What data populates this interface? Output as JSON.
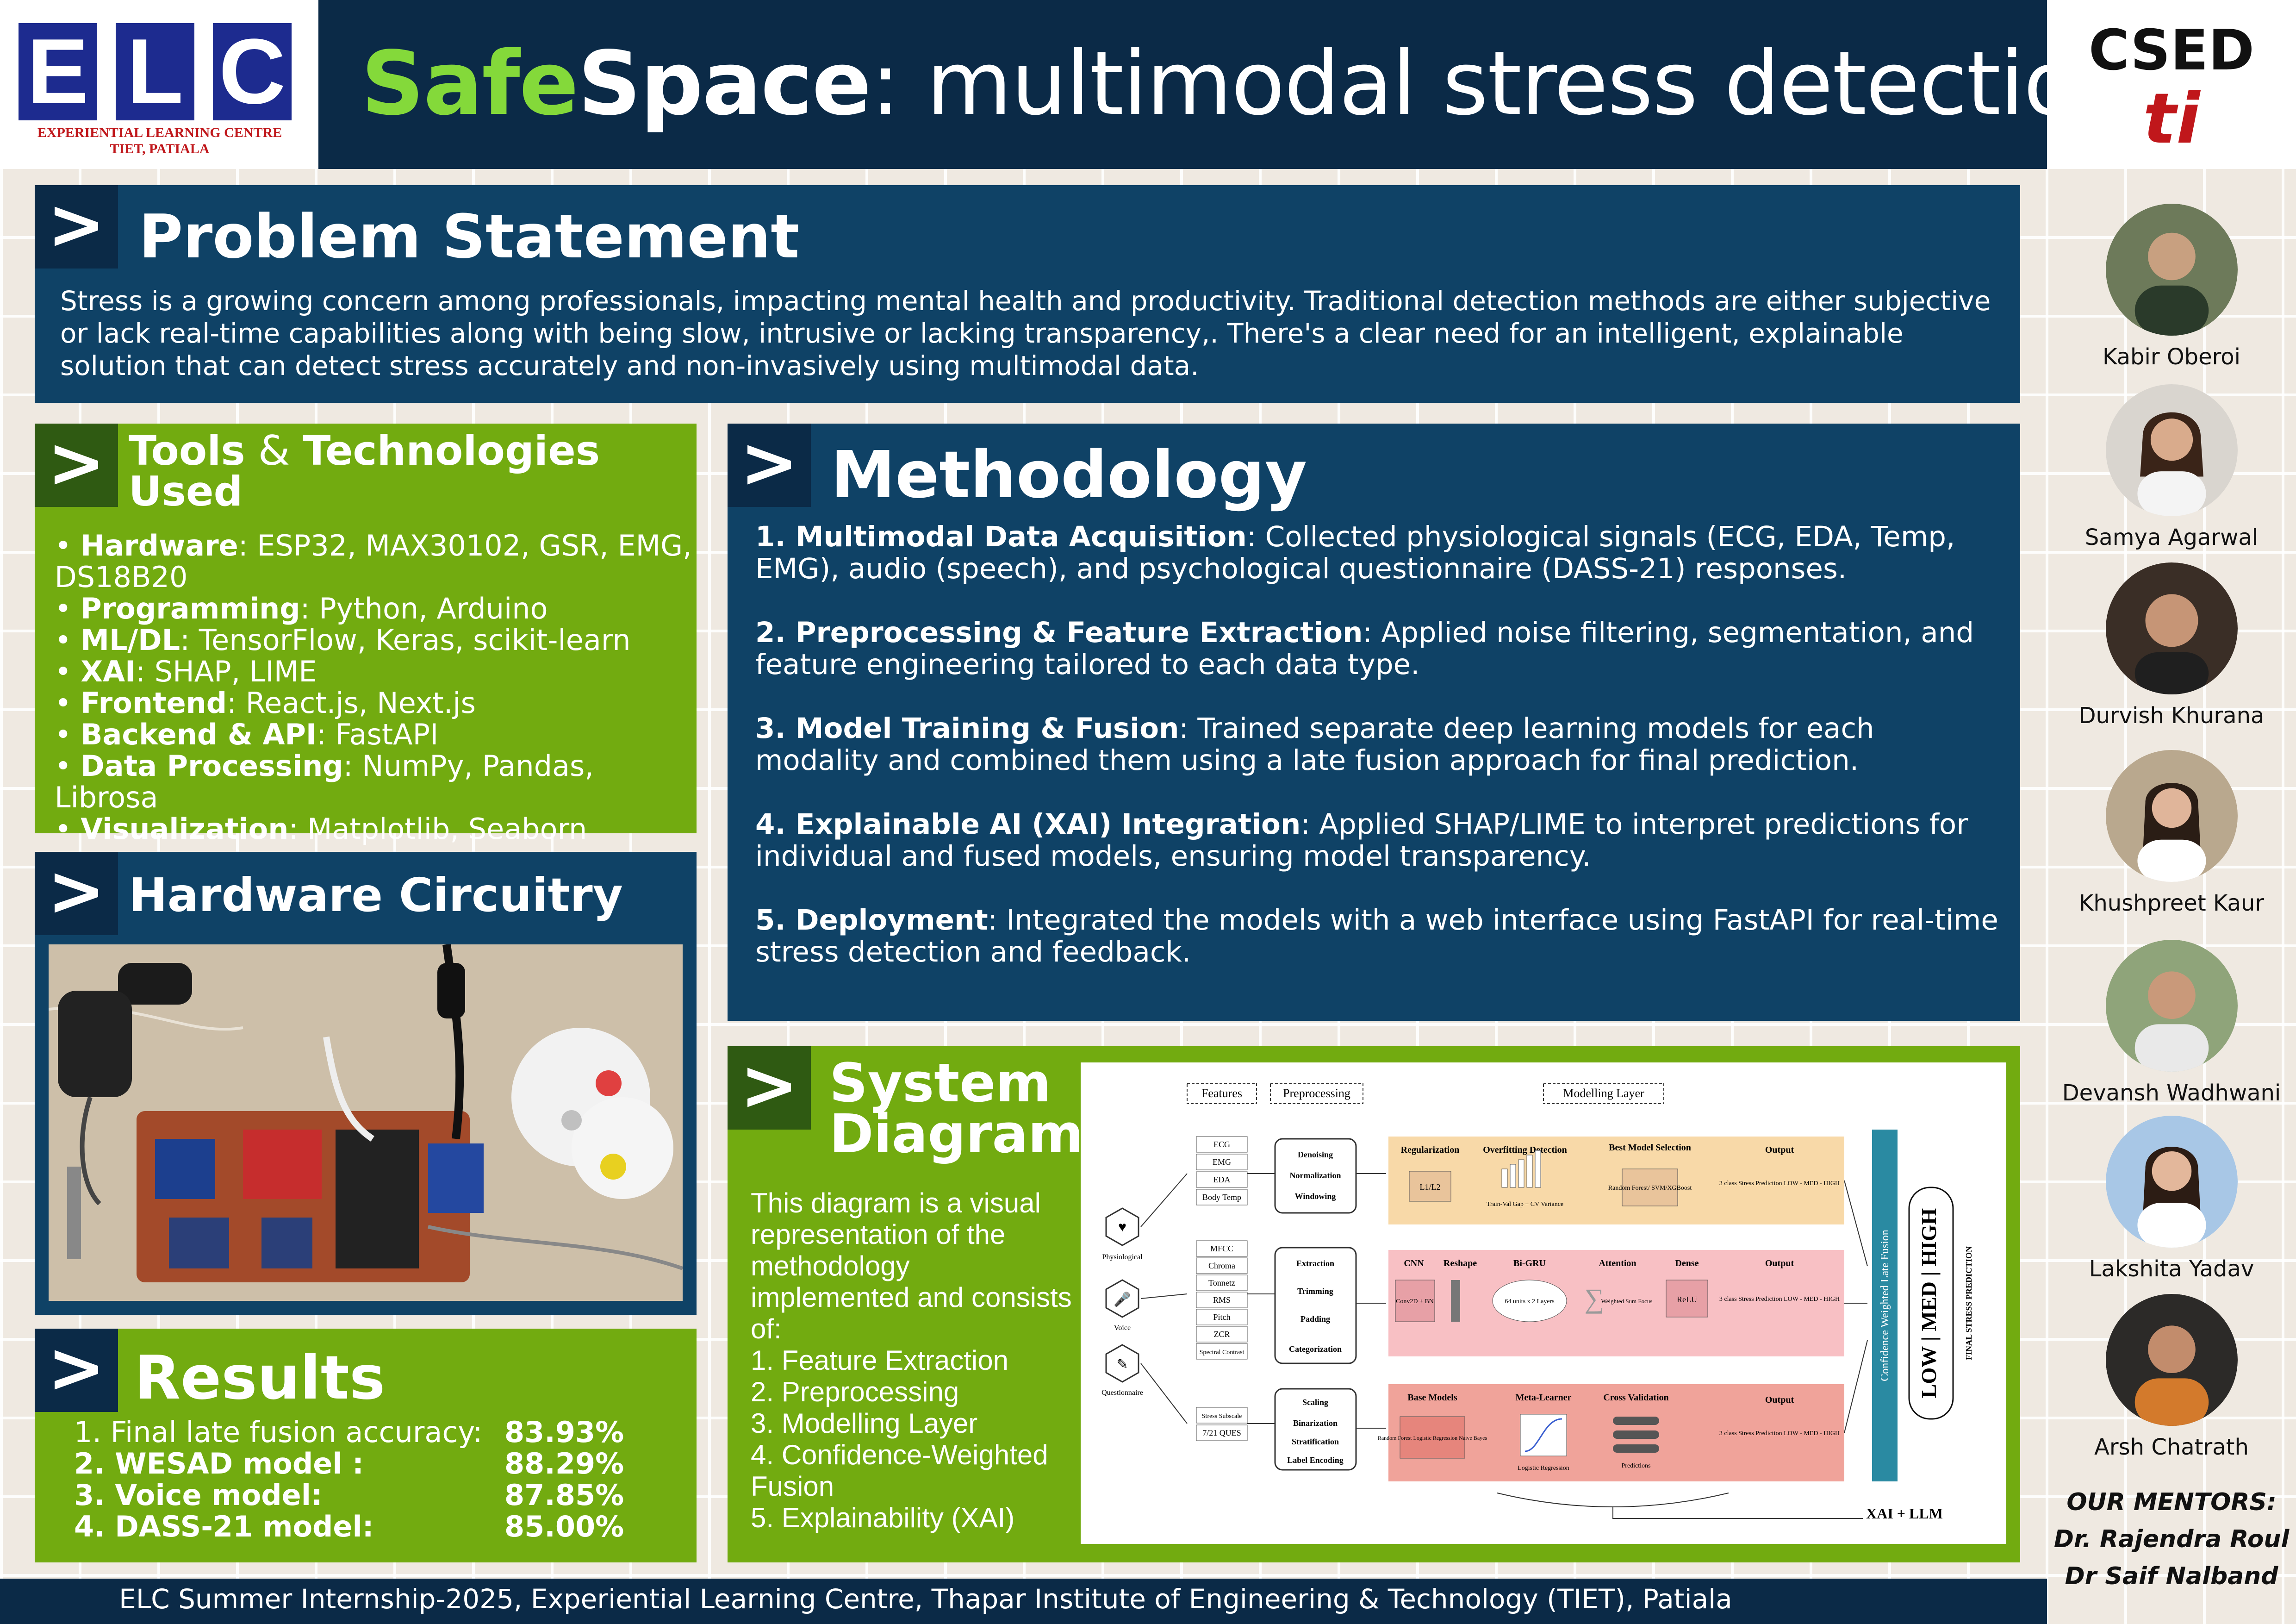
{
  "header": {
    "logo_letters": [
      "E",
      "L",
      "C"
    ],
    "logo_line1": "EXPERIENTIAL LEARNING CENTRE",
    "logo_line2": "TIET, PATIALA",
    "title_accent": "Safe",
    "title_bold": "Space",
    "title_rest": ": multimodal stress detection",
    "dept": "CSED",
    "dept_logo": "ti"
  },
  "problem": {
    "title": "Problem Statement",
    "body": "Stress is a growing concern among professionals, impacting mental health and productivity. Traditional detection methods are either subjective or lack real-time capabilities along with being  slow, intrusive or lacking transparency,. There's a clear need for an intelligent, explainable solution that can detect stress accurately and non-invasively using multimodal data."
  },
  "tools": {
    "title_a": "Tools",
    "title_amp": " & ",
    "title_b": "Technologies Used",
    "items": [
      {
        "label": "Hardware",
        "value": ": ESP32, MAX30102, GSR, EMG, DS18B20"
      },
      {
        "label": "Programming",
        "value": ": Python, Arduino"
      },
      {
        "label": "ML/DL",
        "value": ": TensorFlow, Keras, scikit-learn"
      },
      {
        "label": "XAI",
        "value": ": SHAP, LIME"
      },
      {
        "label": "Frontend",
        "value": ": React.js, Next.js"
      },
      {
        "label": "Backend & API",
        "value": ": FastAPI"
      },
      {
        "label": "Data Processing",
        "value": ": NumPy, Pandas, Librosa"
      },
      {
        "label": "Visualization",
        "value": ": Matplotlib, Seaborn"
      }
    ]
  },
  "hardware": {
    "title": "Hardware Circuitry"
  },
  "results": {
    "title": "Results",
    "items": [
      {
        "label": "1. Final late fusion accuracy:",
        "value": "83.93%"
      },
      {
        "label": "2. WESAD model :",
        "value": "88.29%"
      },
      {
        "label": "3. Voice model:",
        "value": "87.85%"
      },
      {
        "label": "4. DASS-21 model:",
        "value": "85.00%"
      }
    ]
  },
  "methodology": {
    "title": "Methodology",
    "items": [
      {
        "head": "1. Multimodal Data Acquisition",
        "text": ": Collected physiological signals (ECG, EDA, Temp, EMG), audio (speech), and psychological questionnaire (DASS-21) responses."
      },
      {
        "head": "2. Preprocessing & Feature Extraction",
        "text": ":  Applied noise filtering, segmentation, and feature engineering tailored to each data type."
      },
      {
        "head": "3. Model Training & Fusion",
        "text": ":  Trained separate deep learning models for each modality and combined them using a late fusion approach for final prediction."
      },
      {
        "head": "4. Explainable AI (XAI) Integration",
        "text": ": Applied SHAP/LIME to interpret predictions for individual and fused models, ensuring model transparency."
      },
      {
        "head": "5. Deployment",
        "text": ":  Integrated the models with a web interface using FastAPI for real-time stress detection and feedback."
      }
    ]
  },
  "system": {
    "title": "System Diagram",
    "desc": "This diagram is a visual representation of the methodology implemented and consists of:",
    "items": [
      "1. Feature Extraction",
      "2. Preprocessing",
      "3. Modelling Layer",
      "4. Confidence-Weighted Fusion",
      "5. Explainability (XAI)"
    ]
  },
  "diagram": {
    "col_features": "Features",
    "col_preprocessing": "Preprocessing",
    "col_modelling": "Modelling Layer",
    "phys_features": [
      "ECG",
      "EMG",
      "EDA",
      "Body Temp"
    ],
    "voice_features": [
      "MFCC",
      "Chroma",
      "Tonnetz",
      "RMS",
      "Pitch",
      "ZCR",
      "Spectral Contrast"
    ],
    "quest_features": [
      "Stress Subscale",
      "7/21 QUES"
    ],
    "inputs": [
      "Physiological",
      "Voice",
      "Questionnaire"
    ],
    "pre1": [
      "Denoising",
      "Normalization",
      "Windowing"
    ],
    "pre2": [
      "Extraction",
      "Trimming",
      "Padding",
      "Categorization"
    ],
    "pre3": [
      "Scaling",
      "Binarization",
      "Stratification",
      "Label Encoding"
    ],
    "row1": {
      "a": "Regularization",
      "a_box": "L1/L2",
      "b": "Overfitting Detection",
      "b_sub": "Train-Val Gap + CV Variance",
      "c": "Best Model Selection",
      "c_box": "Random Forest/ SVM/XGBoost",
      "d": "Output",
      "d_text": "3 class Stress Prediction LOW - MED - HIGH"
    },
    "row2": {
      "a": "CNN",
      "a_box": "Conv2D + BN",
      "r": "Reshape",
      "b": "Bi-GRU",
      "b_box": "64 units x 2 Layers",
      "c": "Attention",
      "c_sub": "Weighted Sum Focus",
      "e": "Dense",
      "e_box": "ReLU",
      "d": "Output",
      "d_text": "3 class Stress Prediction LOW - MED - HIGH"
    },
    "row3": {
      "a": "Base Models",
      "a_box": "Random Forest Logistic Regression Naive Bayes",
      "b": "Meta-Learner",
      "b_sub": "Logistic Regression",
      "c": "Cross Validation",
      "c_sub": "Predictions",
      "d": "Output",
      "d_text": "3 class Stress Prediction LOW - MED - HIGH"
    },
    "fusion": "Confidence Weighted Late Fusion",
    "result": "LOW | MED | HIGH",
    "final": "FINAL STRESS PREDICTION",
    "xai": "XAI + LLM"
  },
  "team": {
    "members": [
      "Kabir Oberoi",
      "Samya Agarwal",
      "Durvish Khurana",
      "Khushpreet Kaur",
      "Devansh Wadhwani",
      "Lakshita Yadav",
      "Arsh Chatrath"
    ],
    "mentors_label": "OUR MENTORS:",
    "mentors": [
      "Dr. Rajendra Roul",
      "Dr Saif Nalband"
    ]
  },
  "footer": {
    "text": "ELC Summer Internship-2025, Experiential Learning Centre, Thapar Institute of Engineering & Technology (TIET), Patiala"
  },
  "colors": {
    "navy": "#0b2a47",
    "blue_panel": "#0f4266",
    "green_panel": "#72ab10",
    "accent_green": "#84d93a"
  }
}
